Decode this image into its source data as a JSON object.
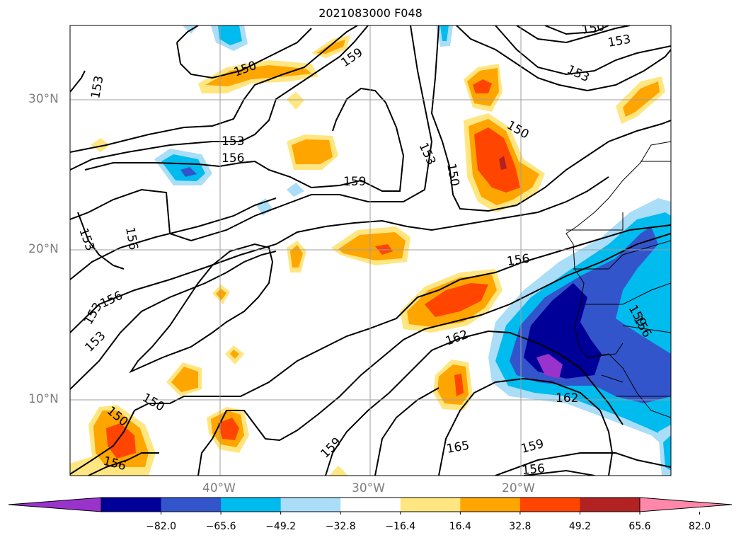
{
  "title": "2021083000 F048",
  "map": {
    "lat_labels": [
      "30°N",
      "20°N",
      "10°N"
    ],
    "lon_labels": [
      "40°W",
      "30°W",
      "20°W"
    ],
    "contour_labels": [
      "150",
      "153",
      "159",
      "150",
      "153",
      "153",
      "150",
      "150",
      "153",
      "150",
      "153",
      "156",
      "159",
      "153",
      "156",
      "156",
      "156",
      "153",
      "150",
      "159",
      "156",
      "162",
      "165",
      "162",
      "159",
      "156",
      "159",
      "156",
      "153"
    ]
  },
  "colorbar": {
    "ticks": [
      "−82.0",
      "−65.6",
      "−49.2",
      "−32.8",
      "−16.4",
      "16.4",
      "32.8",
      "49.2",
      "65.6",
      "82.0"
    ],
    "colors": [
      "#9933cc",
      "#000099",
      "#3355cc",
      "#00bbee",
      "#aaddf7",
      "#ffffff",
      "#ffe680",
      "#ffa500",
      "#ff4500",
      "#b22222",
      "#ff88aa"
    ]
  }
}
